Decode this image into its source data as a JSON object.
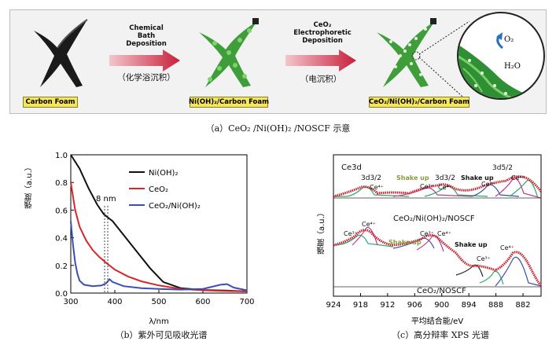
{
  "panel_a": {
    "labels": {
      "carbon_foam": "Carbon Foam",
      "nioh2_foam": "Ni(OH)₂/Carbon Foam",
      "ceo2_foam": "CeO₂/Ni(OH)₂/Carbon Foam"
    },
    "step1": {
      "line1": "Chemical",
      "line2": "Bath",
      "line3": "Deposition",
      "cn": "（化学浴沉积）"
    },
    "step2": {
      "line1": "CeO₂",
      "line2": "Electrophoretic",
      "line3": "Deposition",
      "cn": "（电沉积）"
    },
    "zoom": {
      "o2": "O₂",
      "h2o": "H₂O"
    },
    "caption": "（a）CeO₂ /Ni(OH)₂ /NOSCF 示意"
  },
  "panel_b": {
    "caption": "（b）紫外可见吸收光谱",
    "annotation": "8 nm",
    "chart_data": {
      "type": "line",
      "xlabel": "λ/nm",
      "ylabel": "强度（a.u.）",
      "xlim": [
        300,
        700
      ],
      "ylim": [
        0.0,
        1.0
      ],
      "xticks": [
        "300",
        "400",
        "500",
        "600",
        "700"
      ],
      "yticks": [
        "0.0",
        "0.2",
        "0.4",
        "0.6",
        "0.8",
        "1.0"
      ],
      "legend_position": "top-right",
      "series": [
        {
          "name": "Ni(OH)₂",
          "color": "#111111",
          "x": [
            300,
            320,
            340,
            360,
            375,
            385,
            395,
            420,
            450,
            480,
            510,
            550,
            600,
            650,
            700
          ],
          "y": [
            1.0,
            0.9,
            0.76,
            0.64,
            0.57,
            0.545,
            0.52,
            0.42,
            0.3,
            0.18,
            0.08,
            0.035,
            0.022,
            0.018,
            0.012
          ]
        },
        {
          "name": "CeO₂",
          "color": "#d8262a",
          "x": [
            300,
            310,
            320,
            335,
            350,
            365,
            380,
            400,
            430,
            460,
            500,
            550,
            600,
            650,
            700
          ],
          "y": [
            0.8,
            0.6,
            0.48,
            0.38,
            0.31,
            0.26,
            0.22,
            0.17,
            0.12,
            0.085,
            0.055,
            0.03,
            0.02,
            0.015,
            0.012
          ]
        },
        {
          "name": "CeO₂/Ni(OH)₂",
          "color": "#3a4fb0",
          "x": [
            300,
            305,
            310,
            315,
            320,
            330,
            350,
            370,
            380,
            388,
            395,
            420,
            460,
            500,
            550,
            600,
            640,
            655,
            670,
            700
          ],
          "y": [
            0.52,
            0.35,
            0.22,
            0.14,
            0.09,
            0.06,
            0.05,
            0.055,
            0.07,
            0.1,
            0.08,
            0.05,
            0.035,
            0.03,
            0.025,
            0.03,
            0.06,
            0.065,
            0.04,
            0.02
          ]
        }
      ]
    }
  },
  "panel_c": {
    "caption": "（c）高分辩率 XPS 光谱",
    "chart_data": {
      "type": "line",
      "xlabel": "平均结合能/eV",
      "ylabel": "强度（a.u.）",
      "xlim": [
        924,
        878
      ],
      "xticks": [
        "924",
        "918",
        "912",
        "906",
        "900",
        "894",
        "888",
        "882"
      ],
      "title": "Ce3d",
      "upper_label": "CeO₂/Ni(OH)₂/NOSCF",
      "lower_label": "CeO₂/NOSCF",
      "upper_annotations": [
        "3d3/2",
        "Ce⁴⁺",
        "Shake up",
        "Ce³⁺",
        "3d3/2",
        "Ce⁴⁺",
        "Shake up",
        "Ce³⁺",
        "3d5/2",
        "Ce⁴⁺"
      ],
      "lower_annotations": [
        "Ce³⁺",
        "Ce⁴⁺",
        "Shake up",
        "Ce³⁺",
        "Ce⁴⁺",
        "Shake up",
        "Ce³⁺",
        "Ce⁴⁺"
      ]
    }
  }
}
